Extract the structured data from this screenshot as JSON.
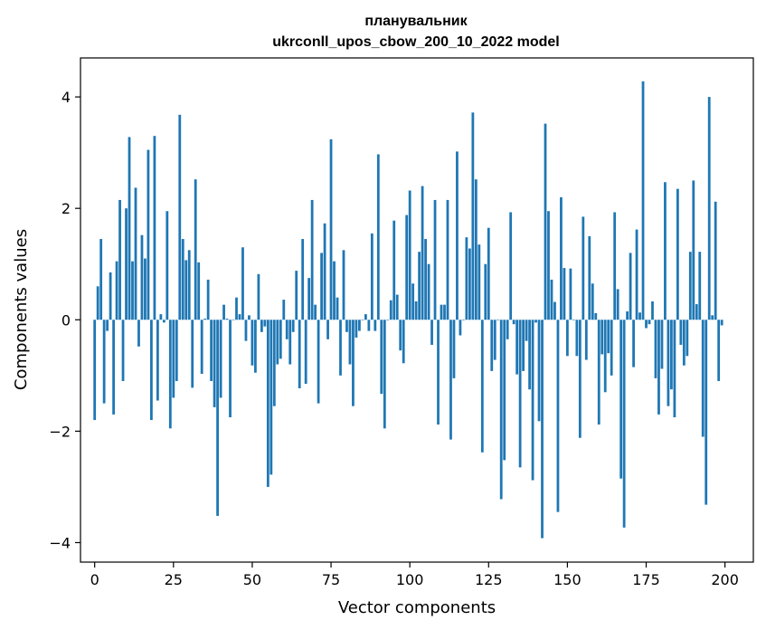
{
  "chart_data": {
    "type": "bar",
    "title": "планувальник",
    "subtitle": "ukrconll_upos_cbow_200_10_2022 model",
    "xlabel": "Vector components",
    "ylabel": "Components values",
    "xlim": [
      -4.5,
      209
    ],
    "ylim": [
      -4.35,
      4.7
    ],
    "xticks": [
      0,
      25,
      50,
      75,
      100,
      125,
      150,
      175,
      200
    ],
    "yticks": [
      -4,
      -2,
      0,
      2,
      4
    ],
    "xtick_labels": [
      "0",
      "25",
      "50",
      "75",
      "100",
      "125",
      "150",
      "175",
      "200"
    ],
    "ytick_labels": [
      "−4",
      "−2",
      "0",
      "2",
      "4"
    ],
    "grid": false,
    "bar_color": "#1f77b4",
    "x": [
      0,
      1,
      2,
      3,
      4,
      5,
      6,
      7,
      8,
      9,
      10,
      11,
      12,
      13,
      14,
      15,
      16,
      17,
      18,
      19,
      20,
      21,
      22,
      23,
      24,
      25,
      26,
      27,
      28,
      29,
      30,
      31,
      32,
      33,
      34,
      35,
      36,
      37,
      38,
      39,
      40,
      41,
      42,
      43,
      44,
      45,
      46,
      47,
      48,
      49,
      50,
      51,
      52,
      53,
      54,
      55,
      56,
      57,
      58,
      59,
      60,
      61,
      62,
      63,
      64,
      65,
      66,
      67,
      68,
      69,
      70,
      71,
      72,
      73,
      74,
      75,
      76,
      77,
      78,
      79,
      80,
      81,
      82,
      83,
      84,
      85,
      86,
      87,
      88,
      89,
      90,
      91,
      92,
      93,
      94,
      95,
      96,
      97,
      98,
      99,
      100,
      101,
      102,
      103,
      104,
      105,
      106,
      107,
      108,
      109,
      110,
      111,
      112,
      113,
      114,
      115,
      116,
      117,
      118,
      119,
      120,
      121,
      122,
      123,
      124,
      125,
      126,
      127,
      128,
      129,
      130,
      131,
      132,
      133,
      134,
      135,
      136,
      137,
      138,
      139,
      140,
      141,
      142,
      143,
      144,
      145,
      146,
      147,
      148,
      149,
      150,
      151,
      152,
      153,
      154,
      155,
      156,
      157,
      158,
      159,
      160,
      161,
      162,
      163,
      164,
      165,
      166,
      167,
      168,
      169,
      170,
      171,
      172,
      173,
      174,
      175,
      176,
      177,
      178,
      179,
      180,
      181,
      182,
      183,
      184,
      185,
      186,
      187,
      188,
      189,
      190,
      191,
      192,
      193,
      194,
      195,
      196,
      197,
      198,
      199
    ],
    "values": [
      -1.8,
      0.6,
      1.45,
      -1.5,
      -0.2,
      0.85,
      -1.7,
      1.05,
      2.15,
      -1.1,
      2.0,
      3.28,
      1.05,
      2.37,
      -0.48,
      1.52,
      1.1,
      3.05,
      -1.8,
      3.3,
      -1.45,
      0.1,
      -0.05,
      1.95,
      -1.95,
      -1.4,
      -1.1,
      3.68,
      1.45,
      1.07,
      1.25,
      -1.22,
      2.52,
      1.03,
      -0.97,
      0.02,
      0.72,
      -1.1,
      -1.57,
      -3.52,
      -1.4,
      0.27,
      0.02,
      -1.75,
      0.0,
      0.4,
      0.1,
      1.3,
      -0.38,
      0.08,
      -0.82,
      -0.95,
      0.82,
      -0.22,
      -0.12,
      -3.0,
      -2.78,
      -1.55,
      -0.8,
      -0.7,
      0.36,
      -0.35,
      -0.8,
      -0.22,
      0.88,
      -1.23,
      1.45,
      -1.15,
      0.75,
      2.15,
      0.27,
      -1.5,
      1.2,
      1.73,
      -0.35,
      3.24,
      1.05,
      0.4,
      -1.0,
      1.25,
      -0.22,
      -0.8,
      -1.55,
      -0.32,
      -0.2,
      0.0,
      0.1,
      -0.2,
      1.55,
      -0.2,
      2.97,
      -1.33,
      -1.95,
      0.0,
      0.35,
      1.78,
      0.45,
      -0.55,
      -0.78,
      1.88,
      2.32,
      0.65,
      0.33,
      1.22,
      2.4,
      1.45,
      1.0,
      -0.45,
      2.15,
      -1.88,
      0.27,
      0.27,
      2.15,
      -2.15,
      -1.05,
      3.02,
      -0.28,
      0.0,
      1.48,
      1.28,
      3.72,
      2.52,
      1.35,
      -2.38,
      1.0,
      1.65,
      -0.92,
      -0.72,
      0.0,
      -3.22,
      -2.52,
      -0.35,
      1.93,
      -0.08,
      -0.98,
      -2.65,
      -0.92,
      -0.38,
      -1.25,
      -2.88,
      -0.05,
      -1.82,
      -3.92,
      3.52,
      1.95,
      0.72,
      0.32,
      -3.45,
      2.2,
      0.93,
      -0.65,
      0.92,
      0.0,
      -0.65,
      -2.12,
      1.85,
      -0.72,
      1.5,
      0.65,
      0.12,
      -1.88,
      -0.62,
      -1.3,
      -0.6,
      -1.0,
      1.93,
      0.55,
      -2.85,
      -3.73,
      0.15,
      1.2,
      -0.85,
      1.62,
      0.13,
      4.28,
      -0.15,
      -0.08,
      0.33,
      -1.05,
      -1.7,
      -0.88,
      2.47,
      -1.55,
      -1.25,
      -1.75,
      2.35,
      -0.45,
      -0.82,
      -0.65,
      1.22,
      2.5,
      0.28,
      1.22,
      -2.1,
      -3.32,
      4.0,
      0.08,
      2.12,
      -1.1,
      -0.1
    ]
  }
}
